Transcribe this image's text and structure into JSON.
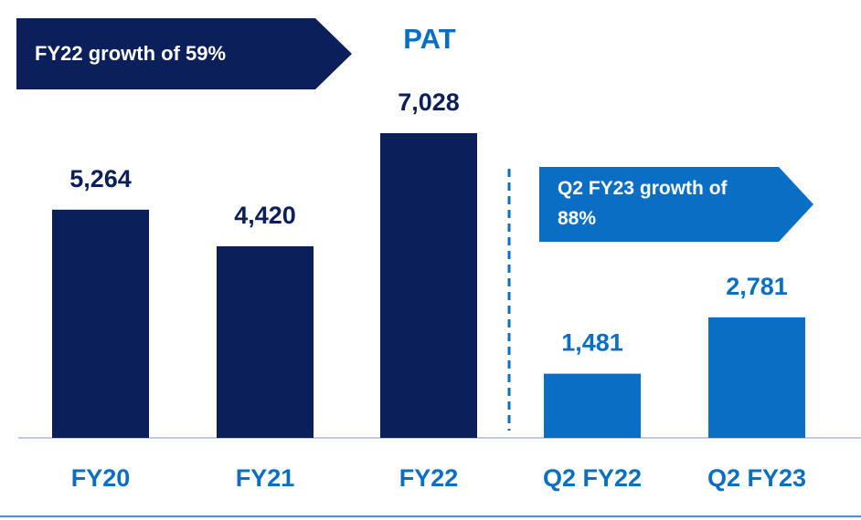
{
  "chart_data": {
    "type": "bar",
    "title": "PAT",
    "categories": [
      "FY20",
      "FY21",
      "FY22",
      "Q2 FY22",
      "Q2 FY23"
    ],
    "values": [
      5264,
      4420,
      7028,
      1481,
      2781
    ],
    "value_labels": [
      "5,264",
      "4,420",
      "7,028",
      "1,481",
      "2,781"
    ],
    "colors": [
      "#0b1f5b",
      "#0b1f5b",
      "#0b1f5b",
      "#0a6fc4",
      "#0a6fc4"
    ],
    "annotations": [
      "FY22 growth of 59%",
      "Q2 FY23 growth of 88%"
    ]
  }
}
